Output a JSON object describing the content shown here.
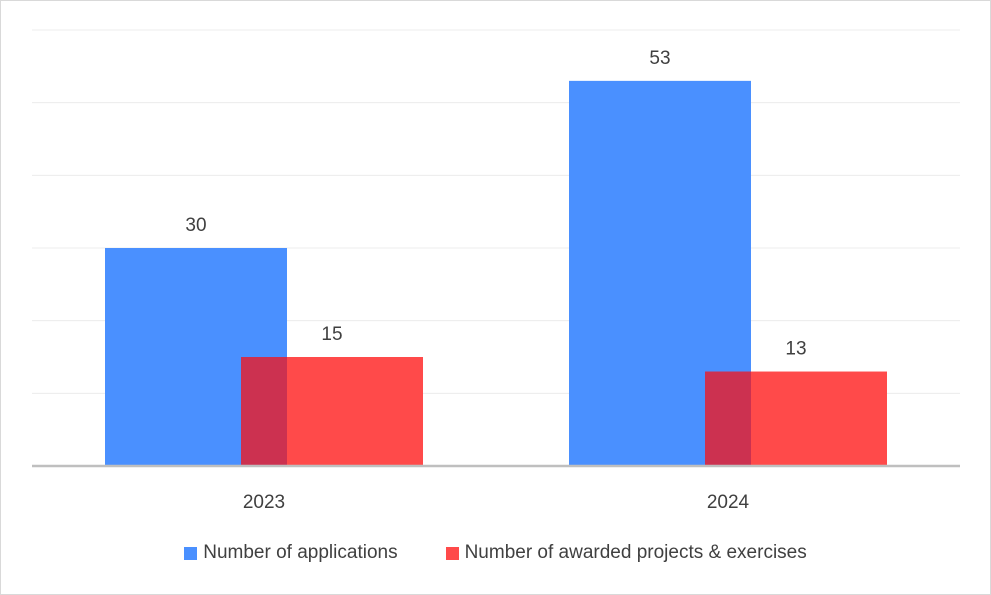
{
  "chart_data": {
    "type": "bar",
    "categories": [
      "2023",
      "2024"
    ],
    "series": [
      {
        "name": "Number of applications",
        "values": [
          30,
          53
        ],
        "color": "#4a90ff"
      },
      {
        "name": "Number of awarded projects & exercises",
        "values": [
          15,
          13
        ],
        "color": "#ff4a4a"
      }
    ],
    "overlap_color": "#cc3150",
    "data_labels": true,
    "ylim": [
      0,
      60
    ],
    "y_tick_step": 10,
    "grid": true,
    "legend_position": "bottom",
    "title": "",
    "xlabel": "",
    "ylabel": ""
  }
}
